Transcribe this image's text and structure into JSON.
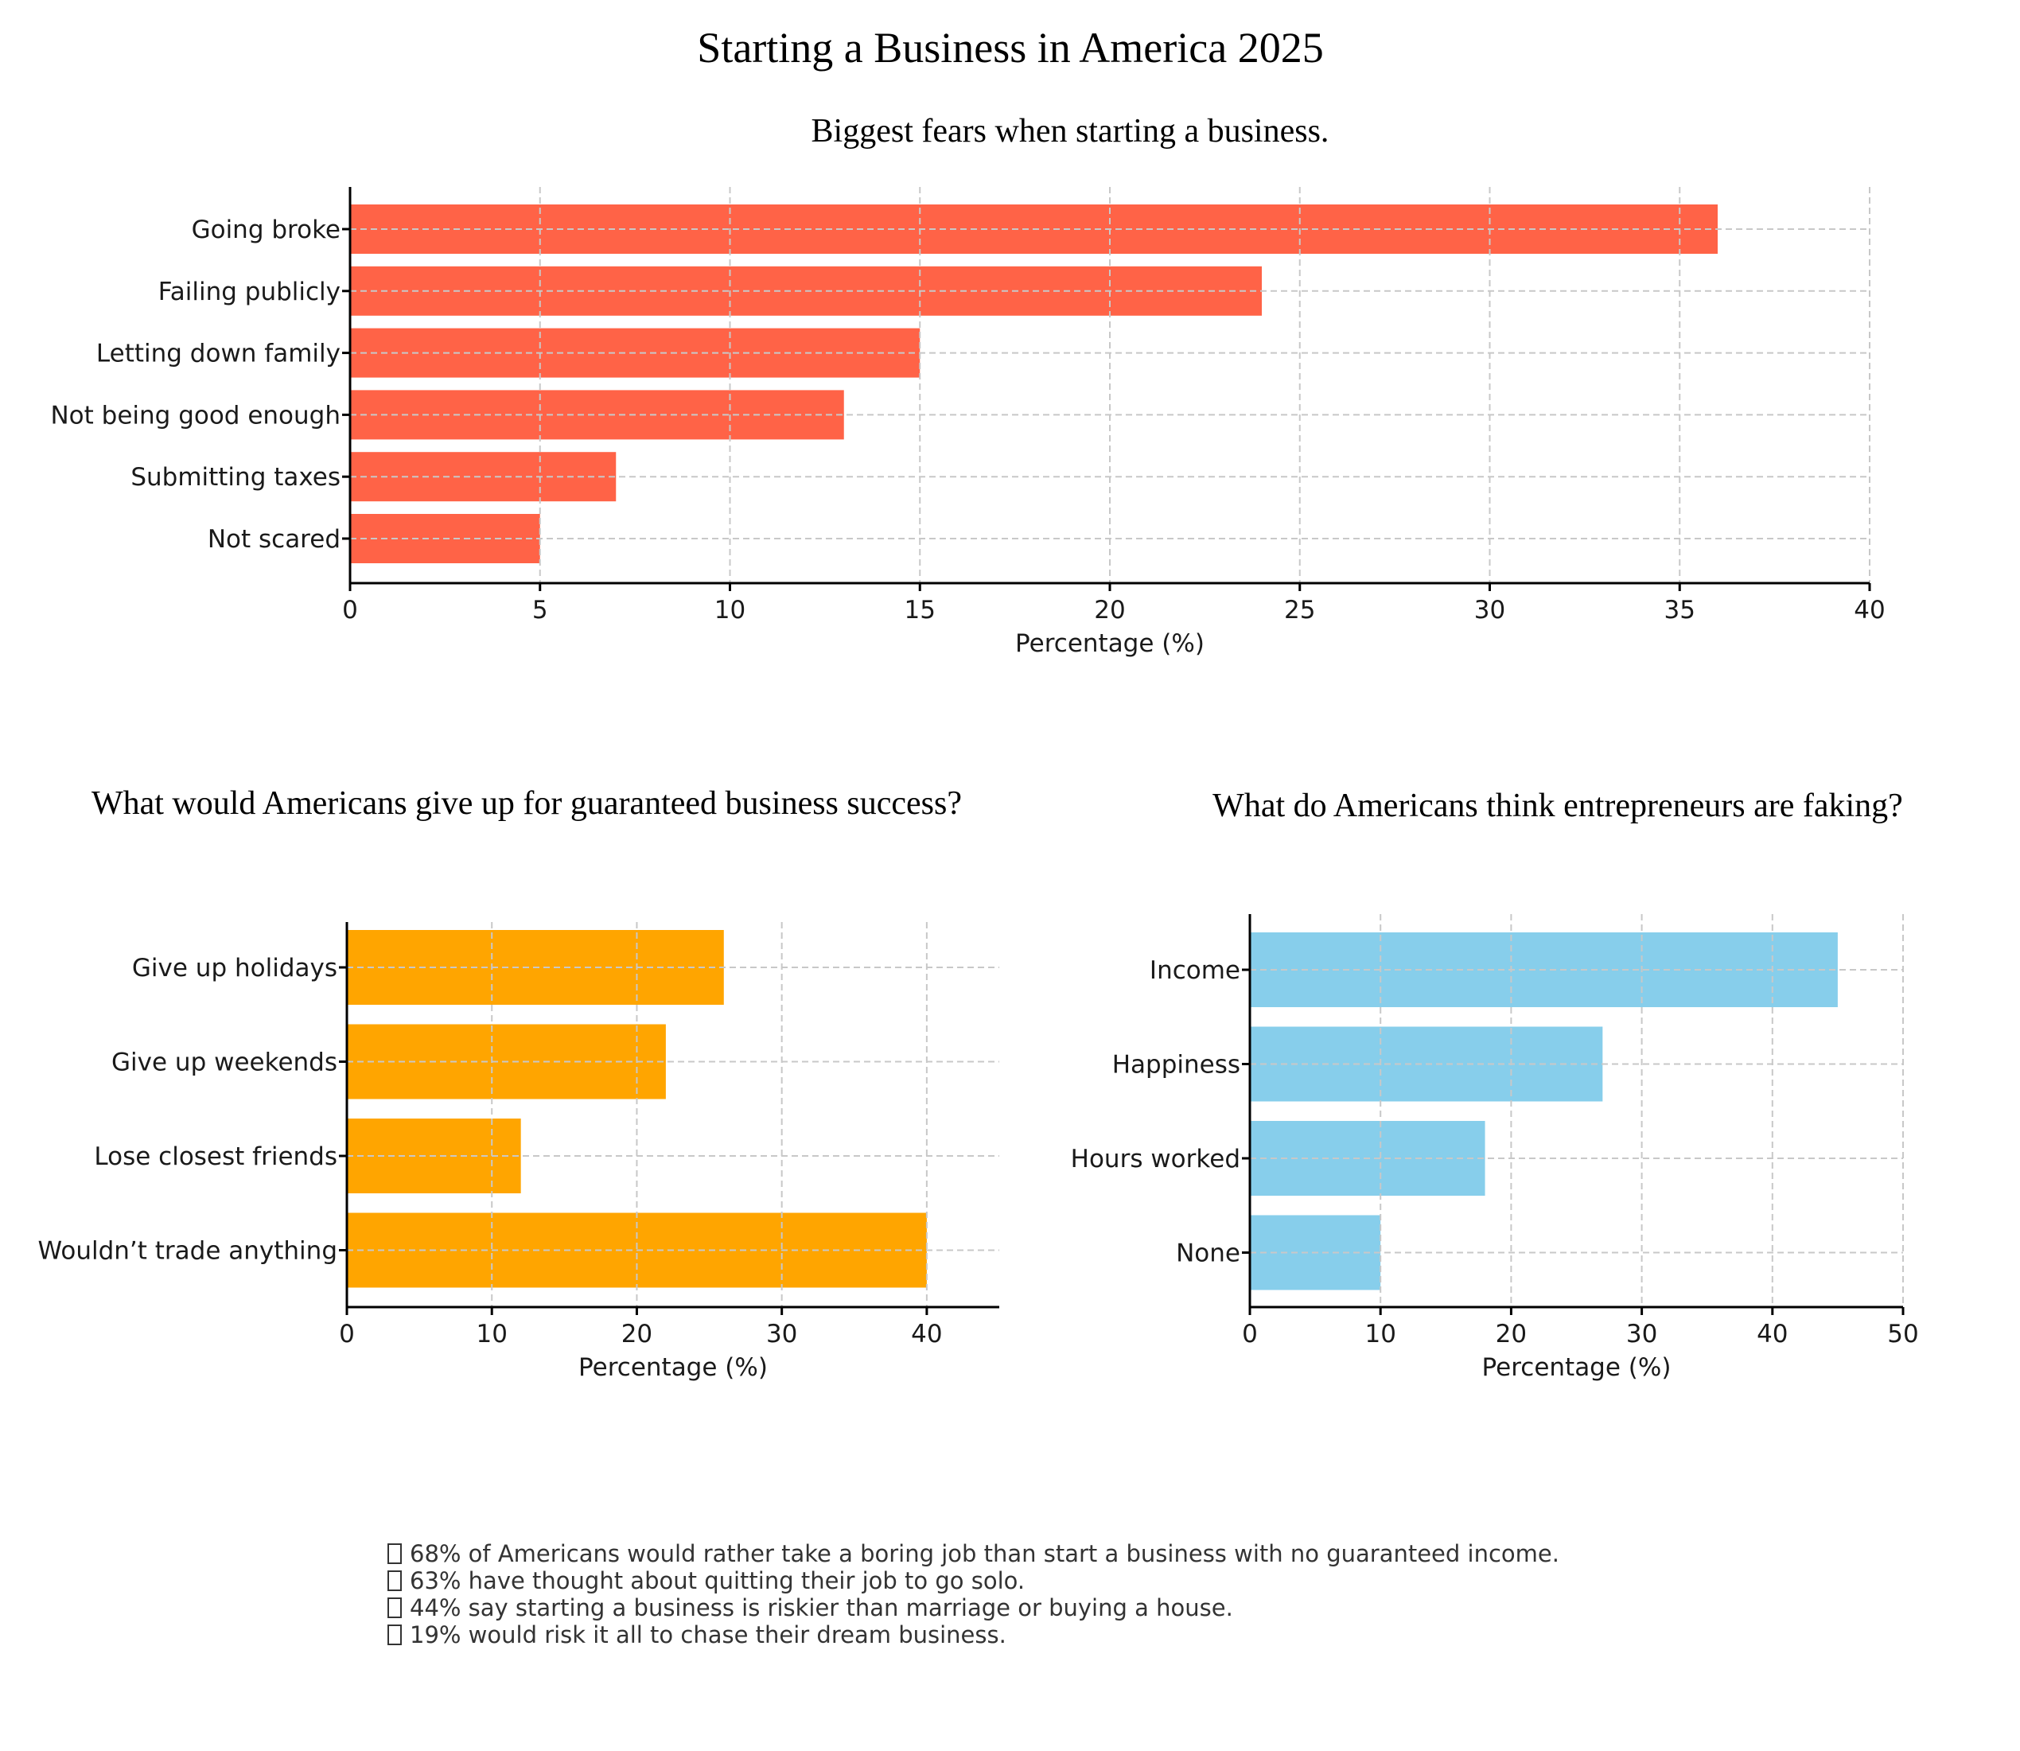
{
  "title": "Starting a Business in America 2025",
  "colors": {
    "fears": "#ff6347",
    "give_up": "#ffa500",
    "faking": "#87ceeb"
  },
  "chart_data": [
    {
      "type": "bar",
      "orientation": "horizontal",
      "title": "Biggest fears when starting a business.",
      "xlabel": "Percentage (%)",
      "ylabel": "",
      "categories": [
        "Going broke",
        "Failing publicly",
        "Letting down family",
        "Not being good enough",
        "Submitting taxes",
        "Not scared"
      ],
      "values": [
        36,
        24,
        15,
        13,
        7,
        5
      ],
      "xlim": [
        0,
        40
      ],
      "xticks": [
        0,
        5,
        10,
        15,
        20,
        25,
        30,
        35,
        40
      ],
      "grid": true,
      "color": "#ff6347"
    },
    {
      "type": "bar",
      "orientation": "horizontal",
      "title": "What would Americans give up for guaranteed business success?",
      "xlabel": "Percentage (%)",
      "ylabel": "",
      "categories": [
        "Give up holidays",
        "Give up weekends",
        "Lose closest friends",
        "Wouldn’t trade anything"
      ],
      "values": [
        26,
        22,
        12,
        40
      ],
      "xlim": [
        0,
        45
      ],
      "xticks": [
        0,
        10,
        20,
        30,
        40
      ],
      "grid": true,
      "color": "#ffa500"
    },
    {
      "type": "bar",
      "orientation": "horizontal",
      "title": "What do Americans think entrepreneurs are faking?",
      "xlabel": "Percentage (%)",
      "ylabel": "",
      "categories": [
        "Income",
        "Happiness",
        "Hours worked",
        "None"
      ],
      "values": [
        45,
        27,
        18,
        10
      ],
      "xlim": [
        0,
        50
      ],
      "xticks": [
        0,
        10,
        20,
        30,
        40,
        50
      ],
      "grid": true,
      "color": "#87ceeb"
    }
  ],
  "notes": [
    "68% of Americans would rather take a boring job than start a business with no guaranteed income.",
    "63% have thought about quitting their job to go solo.",
    "44% say starting a business is riskier than marriage or buying a house.",
    "19% would risk it all to chase their dream business."
  ]
}
